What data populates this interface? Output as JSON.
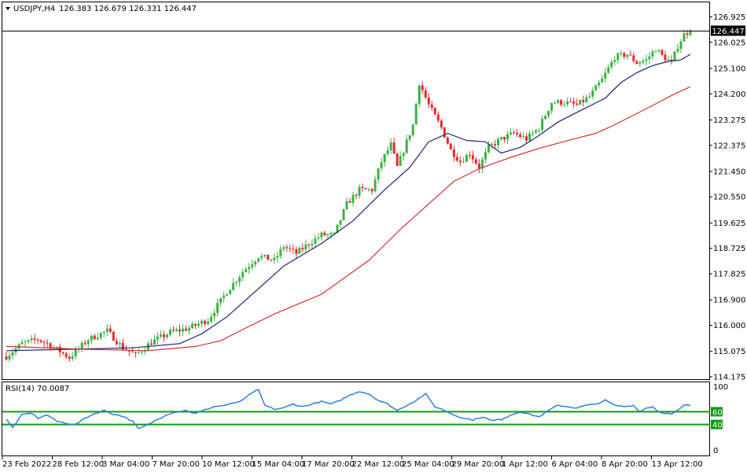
{
  "header": {
    "symbol_tf": "USDJPY,H4",
    "ohlc": "126.383 126.679 126.331 126.447"
  },
  "current_price": "126.447",
  "colors": {
    "bull": "#3cb043",
    "bear": "#e8282f",
    "ma_fast": "#1a237e",
    "ma_slow": "#d32f2f",
    "rsi": "#2f80d8",
    "level": "#119911",
    "axis": "#000000"
  },
  "chart_data": [
    {
      "type": "candlestick",
      "name": "USDJPY,H4",
      "ylim": [
        114.175,
        127.05
      ],
      "y_ticks": [
        "126.925",
        "126.025",
        "125.100",
        "124.200",
        "123.275",
        "122.375",
        "121.450",
        "120.550",
        "119.625",
        "118.725",
        "117.825",
        "116.900",
        "116.000",
        "115.075",
        "114.175"
      ],
      "x_ticks": [
        "23 Feb 2022",
        "28 Feb 12:00",
        "3 Mar 04:00",
        "7 Mar 20:00",
        "10 Mar 12:00",
        "15 Mar 04:00",
        "17 Mar 20:00",
        "22 Mar 12:00",
        "25 Mar 04:00",
        "29 Mar 20:00",
        "1 Apr 12:00",
        "6 Apr 04:00",
        "8 Apr 20:00",
        "13 Apr 12:00"
      ],
      "anchors": [
        {
          "i": 0,
          "v": 114.9
        },
        {
          "i": 5,
          "v": 115.35
        },
        {
          "i": 10,
          "v": 115.5
        },
        {
          "i": 14,
          "v": 115.3
        },
        {
          "i": 20,
          "v": 114.85
        },
        {
          "i": 26,
          "v": 115.5
        },
        {
          "i": 32,
          "v": 115.8
        },
        {
          "i": 37,
          "v": 115.2
        },
        {
          "i": 41,
          "v": 114.95
        },
        {
          "i": 46,
          "v": 115.4
        },
        {
          "i": 52,
          "v": 115.75
        },
        {
          "i": 58,
          "v": 115.9
        },
        {
          "i": 64,
          "v": 116.2
        },
        {
          "i": 70,
          "v": 117.2
        },
        {
          "i": 75,
          "v": 117.9
        },
        {
          "i": 80,
          "v": 118.45
        },
        {
          "i": 85,
          "v": 118.3
        },
        {
          "i": 88,
          "v": 118.8
        },
        {
          "i": 92,
          "v": 118.55
        },
        {
          "i": 96,
          "v": 118.9
        },
        {
          "i": 100,
          "v": 119.2
        },
        {
          "i": 104,
          "v": 119.2
        },
        {
          "i": 108,
          "v": 120.3
        },
        {
          "i": 112,
          "v": 120.8
        },
        {
          "i": 116,
          "v": 120.8
        },
        {
          "i": 119,
          "v": 121.8
        },
        {
          "i": 122,
          "v": 122.4
        },
        {
          "i": 124,
          "v": 121.6
        },
        {
          "i": 127,
          "v": 122.5
        },
        {
          "i": 129,
          "v": 123.1
        },
        {
          "i": 131,
          "v": 124.6
        },
        {
          "i": 134,
          "v": 123.8
        },
        {
          "i": 138,
          "v": 123.0
        },
        {
          "i": 141,
          "v": 122.2
        },
        {
          "i": 144,
          "v": 121.8
        },
        {
          "i": 147,
          "v": 122.1
        },
        {
          "i": 150,
          "v": 121.6
        },
        {
          "i": 153,
          "v": 122.3
        },
        {
          "i": 157,
          "v": 122.6
        },
        {
          "i": 161,
          "v": 122.8
        },
        {
          "i": 165,
          "v": 122.6
        },
        {
          "i": 169,
          "v": 123.0
        },
        {
          "i": 173,
          "v": 123.9
        },
        {
          "i": 177,
          "v": 123.9
        },
        {
          "i": 181,
          "v": 123.8
        },
        {
          "i": 185,
          "v": 124.1
        },
        {
          "i": 189,
          "v": 124.7
        },
        {
          "i": 193,
          "v": 125.5
        },
        {
          "i": 197,
          "v": 125.6
        },
        {
          "i": 200,
          "v": 125.3
        },
        {
          "i": 203,
          "v": 125.4
        },
        {
          "i": 206,
          "v": 125.8
        },
        {
          "i": 208,
          "v": 125.55
        },
        {
          "i": 211,
          "v": 125.3
        },
        {
          "i": 213,
          "v": 125.9
        },
        {
          "i": 215,
          "v": 126.3
        },
        {
          "i": 217,
          "v": 126.45
        }
      ],
      "ma_fast": [
        {
          "i": 0,
          "v": 115.1
        },
        {
          "i": 20,
          "v": 115.15
        },
        {
          "i": 40,
          "v": 115.2
        },
        {
          "i": 55,
          "v": 115.35
        },
        {
          "i": 62,
          "v": 115.7
        },
        {
          "i": 70,
          "v": 116.3
        },
        {
          "i": 80,
          "v": 117.3
        },
        {
          "i": 88,
          "v": 118.1
        },
        {
          "i": 100,
          "v": 118.9
        },
        {
          "i": 110,
          "v": 119.7
        },
        {
          "i": 120,
          "v": 120.8
        },
        {
          "i": 128,
          "v": 121.6
        },
        {
          "i": 134,
          "v": 122.5
        },
        {
          "i": 140,
          "v": 122.8
        },
        {
          "i": 146,
          "v": 122.55
        },
        {
          "i": 152,
          "v": 122.5
        },
        {
          "i": 157,
          "v": 122.1
        },
        {
          "i": 163,
          "v": 122.3
        },
        {
          "i": 168,
          "v": 122.65
        },
        {
          "i": 175,
          "v": 123.2
        },
        {
          "i": 182,
          "v": 123.6
        },
        {
          "i": 190,
          "v": 124.05
        },
        {
          "i": 195,
          "v": 124.6
        },
        {
          "i": 200,
          "v": 124.95
        },
        {
          "i": 205,
          "v": 125.2
        },
        {
          "i": 210,
          "v": 125.35
        },
        {
          "i": 214,
          "v": 125.4
        },
        {
          "i": 217,
          "v": 125.6
        }
      ],
      "ma_slow": [
        {
          "i": 0,
          "v": 115.25
        },
        {
          "i": 25,
          "v": 115.15
        },
        {
          "i": 45,
          "v": 115.1
        },
        {
          "i": 60,
          "v": 115.25
        },
        {
          "i": 68,
          "v": 115.45
        },
        {
          "i": 75,
          "v": 115.85
        },
        {
          "i": 85,
          "v": 116.4
        },
        {
          "i": 100,
          "v": 117.1
        },
        {
          "i": 115,
          "v": 118.3
        },
        {
          "i": 125,
          "v": 119.4
        },
        {
          "i": 135,
          "v": 120.4
        },
        {
          "i": 142,
          "v": 121.1
        },
        {
          "i": 150,
          "v": 121.55
        },
        {
          "i": 160,
          "v": 121.95
        },
        {
          "i": 170,
          "v": 122.3
        },
        {
          "i": 180,
          "v": 122.6
        },
        {
          "i": 187,
          "v": 122.8
        },
        {
          "i": 192,
          "v": 123.05
        },
        {
          "i": 200,
          "v": 123.5
        },
        {
          "i": 207,
          "v": 123.9
        },
        {
          "i": 212,
          "v": 124.2
        },
        {
          "i": 217,
          "v": 124.45
        }
      ]
    },
    {
      "type": "line",
      "name": "RSI(14)",
      "label": "RSI(14) 70.0087",
      "ylim": [
        0,
        100
      ],
      "y_ticks": [
        "100",
        "0"
      ],
      "levels": [
        "60",
        "40"
      ],
      "values": [
        {
          "i": 0,
          "v": 48
        },
        {
          "i": 2,
          "v": 35
        },
        {
          "i": 5,
          "v": 55
        },
        {
          "i": 8,
          "v": 58
        },
        {
          "i": 10,
          "v": 50
        },
        {
          "i": 13,
          "v": 55
        },
        {
          "i": 16,
          "v": 45
        },
        {
          "i": 19,
          "v": 42
        },
        {
          "i": 22,
          "v": 40
        },
        {
          "i": 25,
          "v": 50
        },
        {
          "i": 28,
          "v": 57
        },
        {
          "i": 31,
          "v": 62
        },
        {
          "i": 34,
          "v": 56
        },
        {
          "i": 37,
          "v": 53
        },
        {
          "i": 40,
          "v": 45
        },
        {
          "i": 42,
          "v": 33
        },
        {
          "i": 45,
          "v": 40
        },
        {
          "i": 48,
          "v": 48
        },
        {
          "i": 51,
          "v": 56
        },
        {
          "i": 54,
          "v": 60
        },
        {
          "i": 57,
          "v": 62
        },
        {
          "i": 60,
          "v": 57
        },
        {
          "i": 63,
          "v": 63
        },
        {
          "i": 66,
          "v": 68
        },
        {
          "i": 69,
          "v": 70
        },
        {
          "i": 72,
          "v": 73
        },
        {
          "i": 75,
          "v": 78
        },
        {
          "i": 78,
          "v": 90
        },
        {
          "i": 80,
          "v": 94
        },
        {
          "i": 82,
          "v": 70
        },
        {
          "i": 85,
          "v": 64
        },
        {
          "i": 88,
          "v": 66
        },
        {
          "i": 91,
          "v": 72
        },
        {
          "i": 94,
          "v": 68
        },
        {
          "i": 97,
          "v": 72
        },
        {
          "i": 100,
          "v": 76
        },
        {
          "i": 103,
          "v": 72
        },
        {
          "i": 106,
          "v": 78
        },
        {
          "i": 109,
          "v": 86
        },
        {
          "i": 112,
          "v": 92
        },
        {
          "i": 115,
          "v": 88
        },
        {
          "i": 118,
          "v": 78
        },
        {
          "i": 121,
          "v": 72
        },
        {
          "i": 124,
          "v": 62
        },
        {
          "i": 127,
          "v": 70
        },
        {
          "i": 130,
          "v": 78
        },
        {
          "i": 133,
          "v": 88
        },
        {
          "i": 136,
          "v": 68
        },
        {
          "i": 139,
          "v": 62
        },
        {
          "i": 142,
          "v": 55
        },
        {
          "i": 145,
          "v": 50
        },
        {
          "i": 148,
          "v": 47
        },
        {
          "i": 151,
          "v": 52
        },
        {
          "i": 154,
          "v": 46
        },
        {
          "i": 157,
          "v": 48
        },
        {
          "i": 160,
          "v": 55
        },
        {
          "i": 163,
          "v": 60
        },
        {
          "i": 166,
          "v": 56
        },
        {
          "i": 169,
          "v": 52
        },
        {
          "i": 172,
          "v": 62
        },
        {
          "i": 175,
          "v": 70
        },
        {
          "i": 178,
          "v": 68
        },
        {
          "i": 181,
          "v": 66
        },
        {
          "i": 184,
          "v": 70
        },
        {
          "i": 187,
          "v": 72
        },
        {
          "i": 190,
          "v": 78
        },
        {
          "i": 193,
          "v": 70
        },
        {
          "i": 196,
          "v": 68
        },
        {
          "i": 199,
          "v": 70
        },
        {
          "i": 201,
          "v": 60
        },
        {
          "i": 203,
          "v": 66
        },
        {
          "i": 205,
          "v": 68
        },
        {
          "i": 207,
          "v": 60
        },
        {
          "i": 209,
          "v": 58
        },
        {
          "i": 211,
          "v": 56
        },
        {
          "i": 213,
          "v": 62
        },
        {
          "i": 215,
          "v": 70
        },
        {
          "i": 217,
          "v": 70
        }
      ]
    }
  ]
}
